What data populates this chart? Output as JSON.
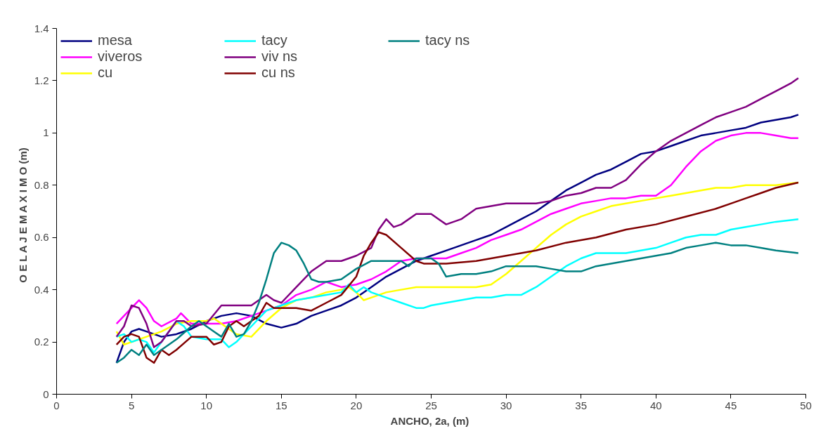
{
  "chart_data": {
    "type": "line",
    "xlabel": "ANCHO, 2a,  (m)",
    "ylabel": "O E L A J E  M A X I M O  (m)",
    "xlim": [
      0,
      50
    ],
    "ylim": [
      0,
      1.4
    ],
    "xticks": [
      0,
      5,
      10,
      15,
      20,
      25,
      30,
      35,
      40,
      45,
      50
    ],
    "yticks": [
      0,
      0.2,
      0.4,
      0.6,
      0.8,
      1,
      1.2,
      1.4
    ],
    "grid": false,
    "legend": "top left",
    "marker": "none",
    "line_style": "solid",
    "series": [
      {
        "name": "mesa",
        "color": "#000080",
        "x": [
          4,
          4.5,
          5,
          5.5,
          6,
          7,
          8,
          9,
          10,
          11,
          12,
          13,
          14,
          15,
          16,
          17,
          18,
          19,
          20,
          21,
          22,
          23,
          24,
          25,
          26,
          27,
          28,
          29,
          30,
          31,
          32,
          33,
          34,
          35,
          36,
          37,
          38,
          39,
          40,
          41,
          42,
          43,
          44,
          45,
          46,
          47,
          48,
          49,
          49.5
        ],
        "values": [
          0.12,
          0.2,
          0.24,
          0.25,
          0.24,
          0.22,
          0.23,
          0.25,
          0.28,
          0.3,
          0.31,
          0.3,
          0.27,
          0.255,
          0.27,
          0.3,
          0.32,
          0.34,
          0.37,
          0.41,
          0.45,
          0.48,
          0.51,
          0.53,
          0.55,
          0.57,
          0.59,
          0.61,
          0.64,
          0.67,
          0.7,
          0.74,
          0.78,
          0.81,
          0.84,
          0.86,
          0.89,
          0.92,
          0.93,
          0.95,
          0.97,
          0.99,
          1.0,
          1.01,
          1.02,
          1.04,
          1.05,
          1.06,
          1.07
        ]
      },
      {
        "name": "viveros",
        "color": "#ff00ff",
        "x": [
          4,
          5,
          5.5,
          6,
          6.5,
          7,
          8,
          8.3,
          9,
          10,
          11,
          12,
          13,
          14,
          15,
          16,
          17,
          18,
          19,
          20,
          21,
          22,
          23,
          24,
          25,
          26,
          27,
          28,
          29,
          30,
          31,
          32,
          33,
          34,
          35,
          36,
          37,
          38,
          39,
          40,
          41,
          42,
          43,
          44,
          45,
          46,
          47,
          48,
          49,
          49.5
        ],
        "values": [
          0.27,
          0.33,
          0.36,
          0.33,
          0.28,
          0.26,
          0.29,
          0.31,
          0.27,
          0.27,
          0.27,
          0.28,
          0.3,
          0.32,
          0.34,
          0.38,
          0.4,
          0.43,
          0.41,
          0.42,
          0.44,
          0.47,
          0.51,
          0.52,
          0.52,
          0.52,
          0.54,
          0.56,
          0.59,
          0.61,
          0.63,
          0.66,
          0.69,
          0.71,
          0.73,
          0.74,
          0.75,
          0.75,
          0.76,
          0.76,
          0.8,
          0.87,
          0.93,
          0.97,
          0.99,
          1.0,
          1.0,
          0.99,
          0.98,
          0.98
        ]
      },
      {
        "name": "cu",
        "color": "#ffff00",
        "x": [
          4,
          4.5,
          5,
          5.5,
          6,
          7,
          8,
          9,
          10,
          10.5,
          11,
          12,
          13,
          14,
          15,
          16,
          17,
          18,
          19,
          19.5,
          20,
          20.5,
          21,
          22,
          23,
          24,
          25,
          26,
          27,
          28,
          29,
          30,
          31,
          32,
          33,
          34,
          35,
          36,
          37,
          38,
          39,
          40,
          41,
          42,
          43,
          44,
          45,
          46,
          47,
          48,
          49.5
        ],
        "values": [
          0.24,
          0.19,
          0.2,
          0.21,
          0.22,
          0.24,
          0.27,
          0.28,
          0.28,
          0.29,
          0.27,
          0.23,
          0.22,
          0.28,
          0.33,
          0.36,
          0.37,
          0.39,
          0.4,
          0.41,
          0.39,
          0.36,
          0.37,
          0.39,
          0.4,
          0.41,
          0.41,
          0.41,
          0.41,
          0.41,
          0.42,
          0.46,
          0.51,
          0.56,
          0.61,
          0.65,
          0.68,
          0.7,
          0.72,
          0.73,
          0.74,
          0.75,
          0.76,
          0.77,
          0.78,
          0.79,
          0.79,
          0.8,
          0.8,
          0.8,
          0.81
        ]
      },
      {
        "name": "tacy",
        "color": "#00ffff",
        "x": [
          4,
          4.5,
          5,
          5.5,
          6,
          6.5,
          7,
          8,
          8.5,
          9,
          10,
          11,
          11.5,
          12,
          13,
          14,
          15,
          16,
          17,
          18,
          19,
          19.5,
          20,
          20.5,
          21,
          22,
          23,
          24,
          24.5,
          25,
          26,
          27,
          28,
          29,
          30,
          31,
          32,
          33,
          34,
          35,
          36,
          37,
          38,
          39,
          40,
          41,
          42,
          43,
          44,
          45,
          46,
          47,
          48,
          49.5
        ],
        "values": [
          0.22,
          0.23,
          0.2,
          0.21,
          0.2,
          0.16,
          0.2,
          0.28,
          0.26,
          0.22,
          0.21,
          0.21,
          0.18,
          0.2,
          0.26,
          0.32,
          0.34,
          0.36,
          0.37,
          0.38,
          0.39,
          0.42,
          0.39,
          0.41,
          0.39,
          0.37,
          0.35,
          0.33,
          0.33,
          0.34,
          0.35,
          0.36,
          0.37,
          0.37,
          0.38,
          0.38,
          0.41,
          0.45,
          0.49,
          0.52,
          0.54,
          0.54,
          0.54,
          0.55,
          0.56,
          0.58,
          0.6,
          0.61,
          0.61,
          0.63,
          0.64,
          0.65,
          0.66,
          0.67
        ]
      },
      {
        "name": "viv ns",
        "color": "#800080",
        "x": [
          4,
          4.5,
          5,
          5.5,
          6,
          6.5,
          7,
          8,
          8.5,
          9,
          10,
          11,
          12,
          13,
          13.5,
          14,
          14.5,
          15,
          16,
          17,
          18,
          19,
          20,
          21,
          21.5,
          22,
          22.5,
          23,
          24,
          25,
          25.5,
          26,
          27,
          28,
          29,
          30,
          31,
          32,
          33,
          34,
          35,
          36,
          37,
          38,
          39,
          40,
          41,
          42,
          43,
          44,
          45,
          46,
          47,
          48,
          49,
          49.5
        ],
        "values": [
          0.22,
          0.26,
          0.34,
          0.33,
          0.27,
          0.18,
          0.2,
          0.28,
          0.28,
          0.26,
          0.27,
          0.34,
          0.34,
          0.34,
          0.36,
          0.38,
          0.36,
          0.35,
          0.41,
          0.47,
          0.51,
          0.51,
          0.53,
          0.56,
          0.63,
          0.67,
          0.64,
          0.65,
          0.69,
          0.69,
          0.67,
          0.65,
          0.67,
          0.71,
          0.72,
          0.73,
          0.73,
          0.73,
          0.74,
          0.76,
          0.77,
          0.79,
          0.79,
          0.82,
          0.88,
          0.93,
          0.97,
          1.0,
          1.03,
          1.06,
          1.08,
          1.1,
          1.13,
          1.16,
          1.19,
          1.21
        ]
      },
      {
        "name": "cu ns",
        "color": "#800000",
        "x": [
          4,
          4.5,
          5,
          5.5,
          6,
          6.5,
          7,
          7.5,
          8,
          9,
          10,
          10.5,
          11,
          11.5,
          12,
          12.5,
          13,
          13.5,
          14,
          14.5,
          15,
          16,
          17,
          18,
          19,
          20,
          20.5,
          21,
          21.5,
          22,
          23,
          24,
          24.5,
          25,
          26,
          28,
          30,
          32,
          34,
          35,
          36,
          38,
          40,
          42,
          44,
          45,
          46,
          47,
          48,
          49.5
        ],
        "values": [
          0.19,
          0.22,
          0.23,
          0.22,
          0.14,
          0.12,
          0.17,
          0.15,
          0.17,
          0.22,
          0.22,
          0.19,
          0.2,
          0.26,
          0.28,
          0.26,
          0.28,
          0.3,
          0.35,
          0.33,
          0.33,
          0.33,
          0.32,
          0.35,
          0.38,
          0.45,
          0.53,
          0.58,
          0.62,
          0.61,
          0.56,
          0.51,
          0.5,
          0.5,
          0.5,
          0.51,
          0.53,
          0.55,
          0.58,
          0.59,
          0.6,
          0.63,
          0.65,
          0.68,
          0.71,
          0.73,
          0.75,
          0.77,
          0.79,
          0.81
        ]
      },
      {
        "name": "tacy ns",
        "color": "#008080",
        "x": [
          4,
          4.5,
          5,
          5.5,
          6,
          6.5,
          7,
          8,
          9,
          9.5,
          10,
          10.5,
          11,
          11.5,
          12,
          12.5,
          13,
          13.5,
          14,
          14.5,
          15,
          15.5,
          16,
          16.5,
          17,
          17.5,
          18,
          19,
          20,
          21,
          22,
          23,
          23.5,
          24,
          25,
          25.5,
          26,
          27,
          28,
          29,
          30,
          31,
          32,
          33,
          34,
          35,
          36,
          37,
          38,
          39,
          40,
          41,
          42,
          43,
          44,
          45,
          46,
          47,
          48,
          49.5
        ],
        "values": [
          0.12,
          0.14,
          0.17,
          0.15,
          0.19,
          0.15,
          0.17,
          0.21,
          0.26,
          0.28,
          0.26,
          0.24,
          0.22,
          0.27,
          0.22,
          0.23,
          0.28,
          0.35,
          0.44,
          0.54,
          0.58,
          0.57,
          0.55,
          0.5,
          0.44,
          0.43,
          0.43,
          0.44,
          0.48,
          0.51,
          0.51,
          0.51,
          0.49,
          0.52,
          0.52,
          0.5,
          0.45,
          0.46,
          0.46,
          0.47,
          0.49,
          0.49,
          0.49,
          0.48,
          0.47,
          0.47,
          0.49,
          0.5,
          0.51,
          0.52,
          0.53,
          0.54,
          0.56,
          0.57,
          0.58,
          0.57,
          0.57,
          0.56,
          0.55,
          0.54
        ]
      }
    ]
  }
}
